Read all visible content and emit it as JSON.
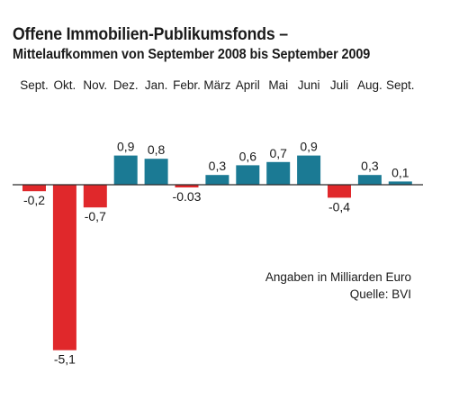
{
  "chart_data": {
    "type": "bar",
    "title": "Offene Immobilien-Publikumsfonds –",
    "subtitle": "Mittelaufkommen von September 2008 bis September 2009",
    "categories": [
      "Sept.",
      "Okt.",
      "Nov.",
      "Dez.",
      "Jan.",
      "Febr.",
      "März",
      "April",
      "Mai",
      "Juni",
      "Juli",
      "Aug.",
      "Sept."
    ],
    "values": [
      -0.2,
      -5.1,
      -0.7,
      0.9,
      0.8,
      -0.03,
      0.3,
      0.6,
      0.7,
      0.9,
      -0.4,
      0.3,
      0.1
    ],
    "value_labels": [
      "-0,2",
      "-5,1",
      "-0,7",
      "0,9",
      "0,8",
      "-0.03",
      "0,3",
      "0,6",
      "0,7",
      "0,9",
      "-0,4",
      "0,3",
      "0,1"
    ],
    "unit_note": "Angaben in Milliarden Euro",
    "source_note": "Quelle: BVI",
    "xlabel": "",
    "ylabel": "",
    "grid": false,
    "colors": {
      "positive": "#1b7a94",
      "negative": "#e0282b",
      "baseline": "#2a2a2a"
    }
  }
}
